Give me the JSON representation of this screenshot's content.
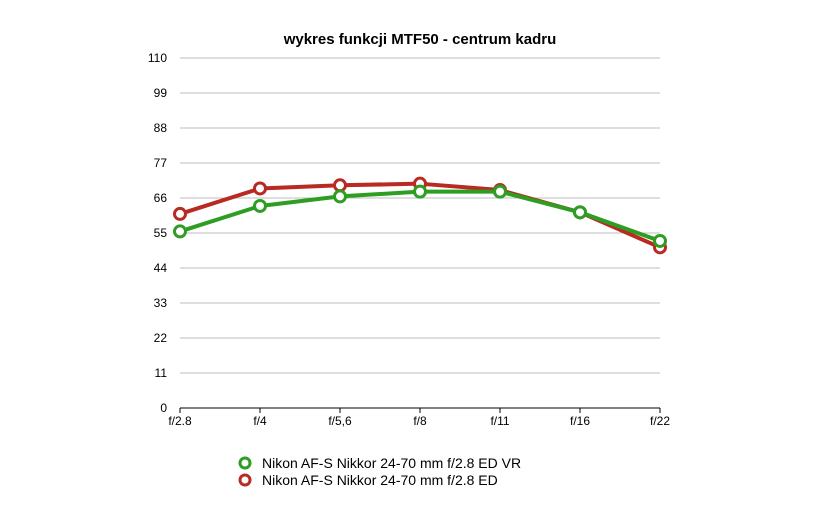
{
  "chart_data": {
    "type": "line",
    "title": "wykres funkcji MTF50 - centrum kadru",
    "xlabel": "",
    "ylabel": "",
    "categories": [
      "f/2.8",
      "f/4",
      "f/5,6",
      "f/8",
      "f/11",
      "f/16",
      "f/22"
    ],
    "ylim": [
      0,
      110
    ],
    "yticks": [
      "0",
      "11",
      "22",
      "33",
      "44",
      "55",
      "66",
      "77",
      "88",
      "99",
      "110"
    ],
    "grid": true,
    "legend_position": "bottom",
    "series": [
      {
        "name": "Nikon AF-S Nikkor 24-70 mm f/2.8 ED VR",
        "color": "#2e9e22",
        "values": [
          55.5,
          63.5,
          66.5,
          68.0,
          68.0,
          61.5,
          52.5
        ]
      },
      {
        "name": "Nikon AF-S Nikkor 24-70 mm f/2.8 ED",
        "color": "#b82a22",
        "values": [
          61.0,
          69.0,
          70.0,
          70.5,
          68.5,
          61.5,
          50.5
        ]
      }
    ]
  }
}
